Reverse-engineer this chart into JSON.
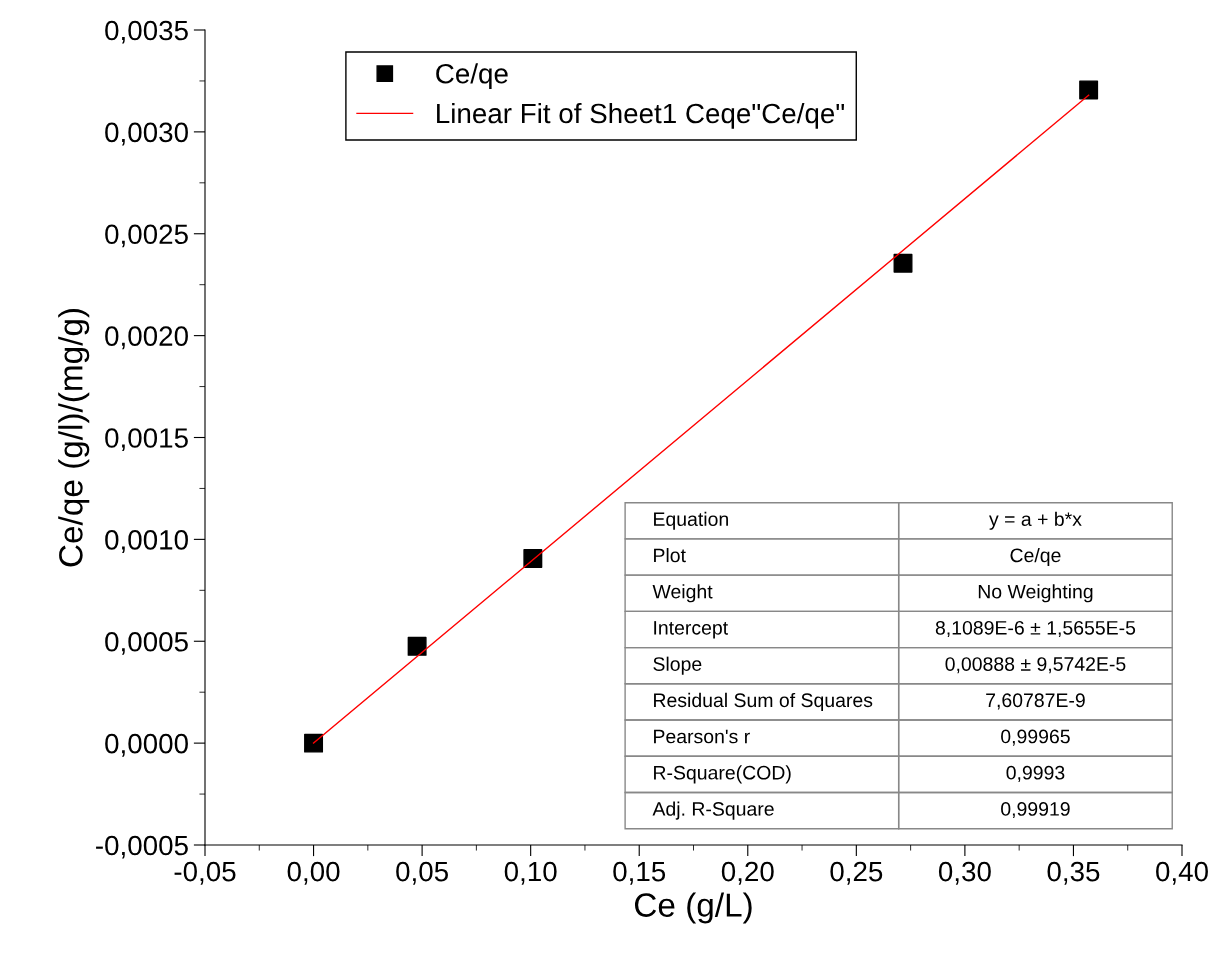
{
  "chart_data": {
    "type": "scatter",
    "xlabel": "Ce (g/L)",
    "ylabel": "Ce/qe (g/l)/(mg/g)",
    "series": [
      {
        "name": "Ce/qe",
        "color": "#000000",
        "marker": "square",
        "x": [
          0.0,
          0.0477,
          0.101,
          0.2715,
          0.357
        ],
        "values": [
          0.0,
          0.000475,
          0.000906,
          0.002355,
          0.003206
        ]
      },
      {
        "name": "Linear Fit of Sheet1 Ceqe\"Ce/qe\"",
        "type": "line",
        "color": "#ff0000",
        "line_style": "solid",
        "x": [
          0.0,
          0.357
        ],
        "values": [
          0.0,
          0.00318
        ]
      }
    ],
    "xlim": [
      -0.05,
      0.4
    ],
    "xticks": [
      {
        "value": -0.05,
        "label": "-0,05"
      },
      {
        "value": 0.0,
        "label": "0,00"
      },
      {
        "value": 0.05,
        "label": "0,05"
      },
      {
        "value": 0.1,
        "label": "0,10"
      },
      {
        "value": 0.15,
        "label": "0,15"
      },
      {
        "value": 0.2,
        "label": "0,20"
      },
      {
        "value": 0.25,
        "label": "0,25"
      },
      {
        "value": 0.3,
        "label": "0,30"
      },
      {
        "value": 0.35,
        "label": "0,35"
      },
      {
        "value": 0.4,
        "label": "0,40"
      }
    ],
    "ylim": [
      -0.0005,
      0.0035
    ],
    "yticks": [
      {
        "value": -0.0005,
        "label": "-0,0005"
      },
      {
        "value": 0.0,
        "label": "0,0000"
      },
      {
        "value": 0.0005,
        "label": "0,0005"
      },
      {
        "value": 0.001,
        "label": "0,0010"
      },
      {
        "value": 0.0015,
        "label": "0,0015"
      },
      {
        "value": 0.002,
        "label": "0,0020"
      },
      {
        "value": 0.0025,
        "label": "0,0025"
      },
      {
        "value": 0.003,
        "label": "0,0030"
      },
      {
        "value": 0.0035,
        "label": "0,0035"
      }
    ],
    "grid": false,
    "legend": "top left",
    "annotations": [
      "Equation",
      "y = a + b*x",
      "Plot",
      "Ce/qe",
      "Weight",
      "No Weighting",
      "Intercept",
      "8,1089E-6 ± 1,5655E-5",
      "Slope",
      "0,00888 ± 9,5742E-5",
      "Residual Sum of Squares",
      "7,60787E-9",
      "Pearson's r",
      "0,99965",
      "R-Square(COD)",
      "0,9993",
      "Adj. R-Square",
      "0,99919"
    ]
  }
}
